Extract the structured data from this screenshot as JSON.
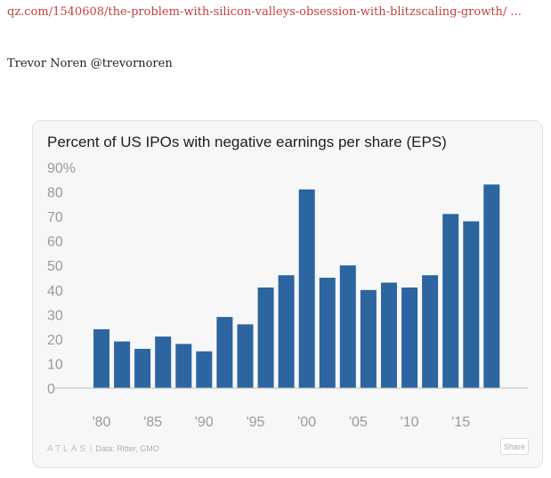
{
  "article": {
    "link_text": "qz.com/1540608/the-problem-with-silicon-valleys-obsession-with-blitzscaling-growth/ ...",
    "author_text": "Trevor Noren @trevornoren"
  },
  "colors": {
    "link": "#c1433d",
    "bar": "#2c65a0",
    "axis": "#bdbdbd",
    "card_background": "#f7f7f7"
  },
  "chart_data": {
    "type": "bar",
    "title": "Percent of US IPOs with negative earnings per share (EPS)",
    "xlabel": "",
    "ylabel": "",
    "x_tick_labels": [
      "'80",
      "'85",
      "'90",
      "'95",
      "'00",
      "'05",
      "'10",
      "'15"
    ],
    "y_tick_labels": [
      "0",
      "10",
      "20",
      "30",
      "40",
      "50",
      "60",
      "70",
      "80",
      "90%"
    ],
    "ylim": [
      0,
      90
    ],
    "categories": [
      1980,
      1982,
      1984,
      1986,
      1988,
      1990,
      1992,
      1994,
      1996,
      1998,
      2000,
      2002,
      2004,
      2006,
      2008,
      2010,
      2012,
      2014,
      2016,
      2018
    ],
    "values": [
      24,
      19,
      16,
      21,
      18,
      15,
      29,
      26,
      41,
      46,
      81,
      45,
      50,
      40,
      43,
      41,
      46,
      71,
      68,
      83
    ],
    "grid": false,
    "legend": "none"
  },
  "footer": {
    "brand": "ATLAS",
    "separator": "|",
    "source": "Data: Ritter, GMO",
    "share_label": "Share"
  }
}
